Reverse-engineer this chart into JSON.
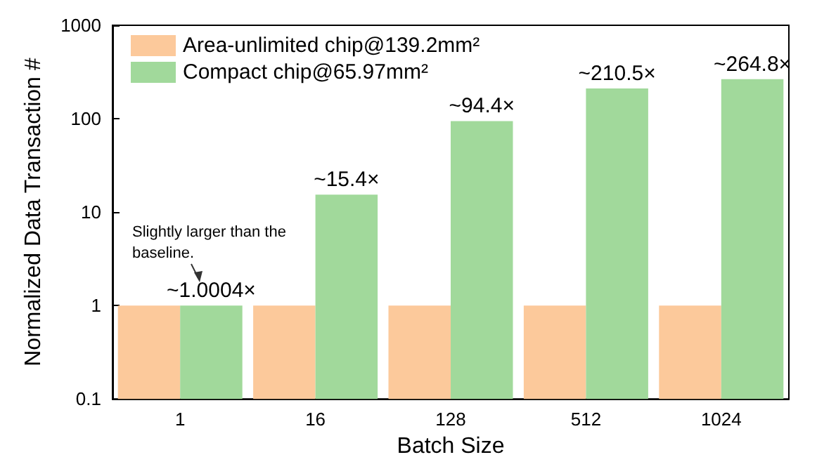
{
  "chart_data": {
    "type": "bar",
    "xlabel": "Batch Size",
    "ylabel": "Normalized Data Transaction #",
    "categories": [
      "1",
      "16",
      "128",
      "512",
      "1024"
    ],
    "series": [
      {
        "name": "Area-unlimited chip@139.2mm²",
        "color": "#fcc99b",
        "values": [
          1,
          1,
          1,
          1,
          1
        ]
      },
      {
        "name": "Compact chip@65.97mm²",
        "color": "#a1d99b",
        "values": [
          1.0004,
          15.4,
          94.4,
          210.5,
          264.8
        ],
        "value_labels": [
          "~1.0004×",
          "~15.4×",
          "~94.4×",
          "~210.5×",
          "~264.8×"
        ]
      }
    ],
    "log": "y",
    "ylim": [
      0.1,
      1000
    ],
    "yticks": [
      0.1,
      1,
      10,
      100,
      1000
    ],
    "legend": "top left",
    "grid": false,
    "annotations": [
      "Slightly larger than the baseline."
    ]
  }
}
